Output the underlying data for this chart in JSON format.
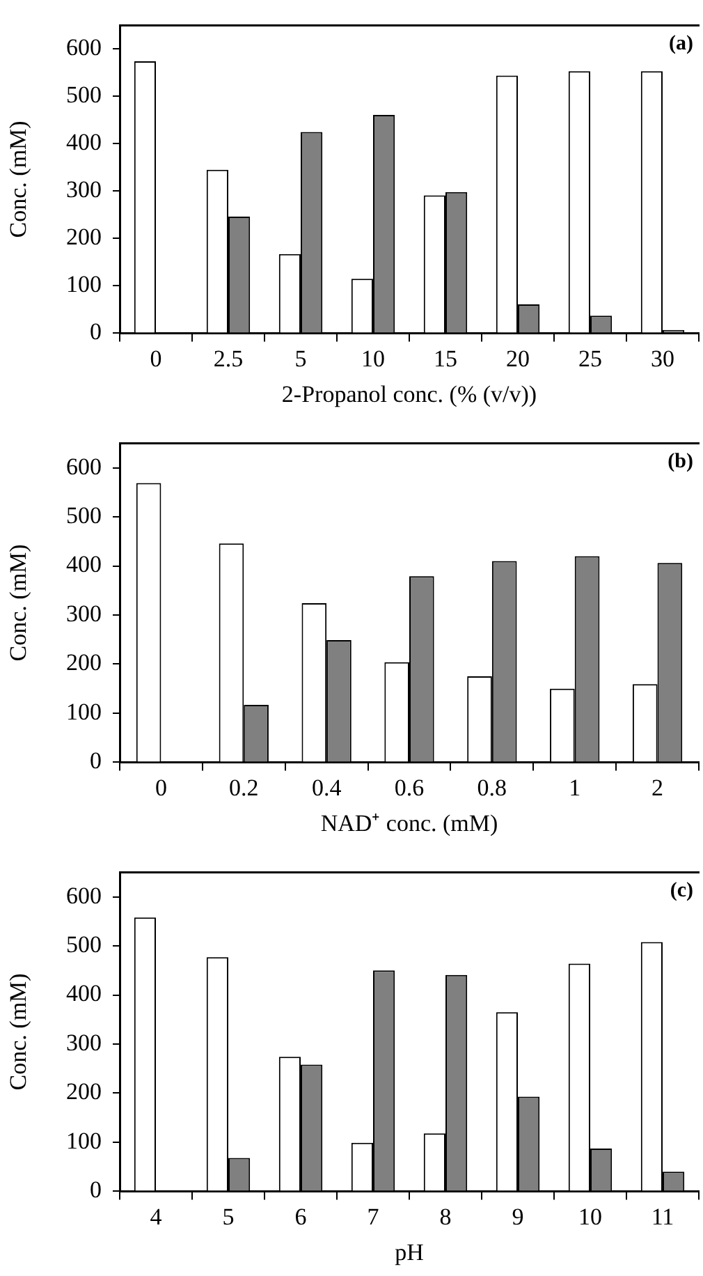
{
  "chart_data": [
    {
      "type": "bar",
      "xlabel": "2-Propanol conc. (% (v/v))",
      "ylabel": "Conc. (mM)",
      "annotations": [
        "(a)"
      ],
      "categories": [
        "0",
        "2.5",
        "5",
        "10",
        "15",
        "20",
        "25",
        "30"
      ],
      "ylim": [
        0,
        650
      ],
      "yticks": [
        0,
        100,
        200,
        300,
        400,
        500,
        600
      ],
      "grid": false,
      "legend": false,
      "series": [
        {
          "color": "#ffffff",
          "values": [
            574,
            345,
            167,
            115,
            291,
            544,
            553,
            553
          ]
        },
        {
          "color": "#808080",
          "values": [
            null,
            246,
            425,
            461,
            298,
            61,
            37,
            7
          ]
        }
      ]
    },
    {
      "type": "bar",
      "xlabel": "NAD⁺ conc. (mM)",
      "ylabel": "Conc. (mM)",
      "annotations": [
        "(b)"
      ],
      "categories": [
        "0",
        "0.2",
        "0.4",
        "0.6",
        "0.8",
        "1",
        "2"
      ],
      "ylim": [
        0,
        650
      ],
      "yticks": [
        0,
        100,
        200,
        300,
        400,
        500,
        600
      ],
      "grid": false,
      "legend": false,
      "series": [
        {
          "color": "#ffffff",
          "values": [
            569,
            446,
            324,
            204,
            175,
            150,
            159
          ]
        },
        {
          "color": "#808080",
          "values": [
            null,
            117,
            249,
            379,
            410,
            420,
            406
          ]
        }
      ]
    },
    {
      "type": "bar",
      "xlabel": "pH",
      "ylabel": "Conc. (mM)",
      "annotations": [
        "(c)"
      ],
      "categories": [
        "4",
        "5",
        "6",
        "7",
        "8",
        "9",
        "10",
        "11"
      ],
      "ylim": [
        0,
        650
      ],
      "yticks": [
        0,
        100,
        200,
        300,
        400,
        500,
        600
      ],
      "grid": false,
      "legend": false,
      "series": [
        {
          "color": "#ffffff",
          "values": [
            558,
            477,
            274,
            99,
            118,
            365,
            464,
            508
          ]
        },
        {
          "color": "#808080",
          "values": [
            null,
            68,
            258,
            450,
            441,
            193,
            87,
            40
          ]
        }
      ]
    }
  ]
}
